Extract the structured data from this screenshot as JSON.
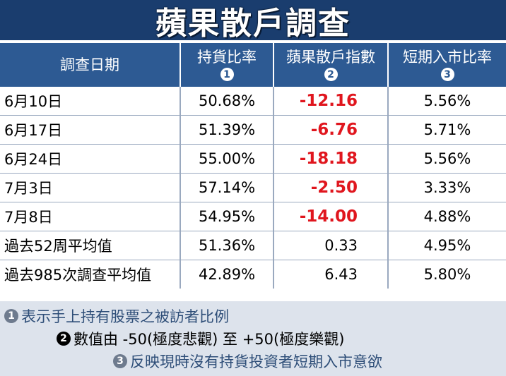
{
  "title": "蘋果散戶調查",
  "headers": [
    {
      "label": "調查日期",
      "badge": ""
    },
    {
      "label": "持貨比率",
      "badge": "1"
    },
    {
      "label": "蘋果散戶指數",
      "badge": "2"
    },
    {
      "label": "短期入市比率",
      "badge": "3"
    }
  ],
  "rows": [
    {
      "date": "6月10日",
      "holding": "50.68%",
      "index": "-12.16",
      "short_term": "5.56%"
    },
    {
      "date": "6月17日",
      "holding": "51.39%",
      "index": "-6.76",
      "short_term": "5.71%"
    },
    {
      "date": "6月24日",
      "holding": "55.00%",
      "index": "-18.18",
      "short_term": "5.56%"
    },
    {
      "date": "7月3日",
      "holding": "57.14%",
      "index": "-2.50",
      "short_term": "3.33%"
    },
    {
      "date": "7月8日",
      "holding": "54.95%",
      "index": "-14.00",
      "short_term": "4.88%"
    },
    {
      "date": "過去52周平均值",
      "holding": "51.36%",
      "index": "0.33",
      "short_term": "4.95%"
    },
    {
      "date": "過去985次調查平均值",
      "holding": "42.89%",
      "index": "6.43",
      "short_term": "5.80%"
    }
  ],
  "notes": [
    {
      "badge": "1",
      "text": "表示手上持有股票之被訪者比例"
    },
    {
      "badge": "2",
      "text": "數值由 -50(極度悲觀) 至 +50(極度樂觀)"
    },
    {
      "badge": "3",
      "text": "反映現時沒有持貨投資者短期入市意欲"
    }
  ],
  "colors": {
    "title_bg": "#1a3d6e",
    "header_bg": "#2d5a93",
    "negative": "#e0161e",
    "notes_bg": "#dde3ec"
  }
}
